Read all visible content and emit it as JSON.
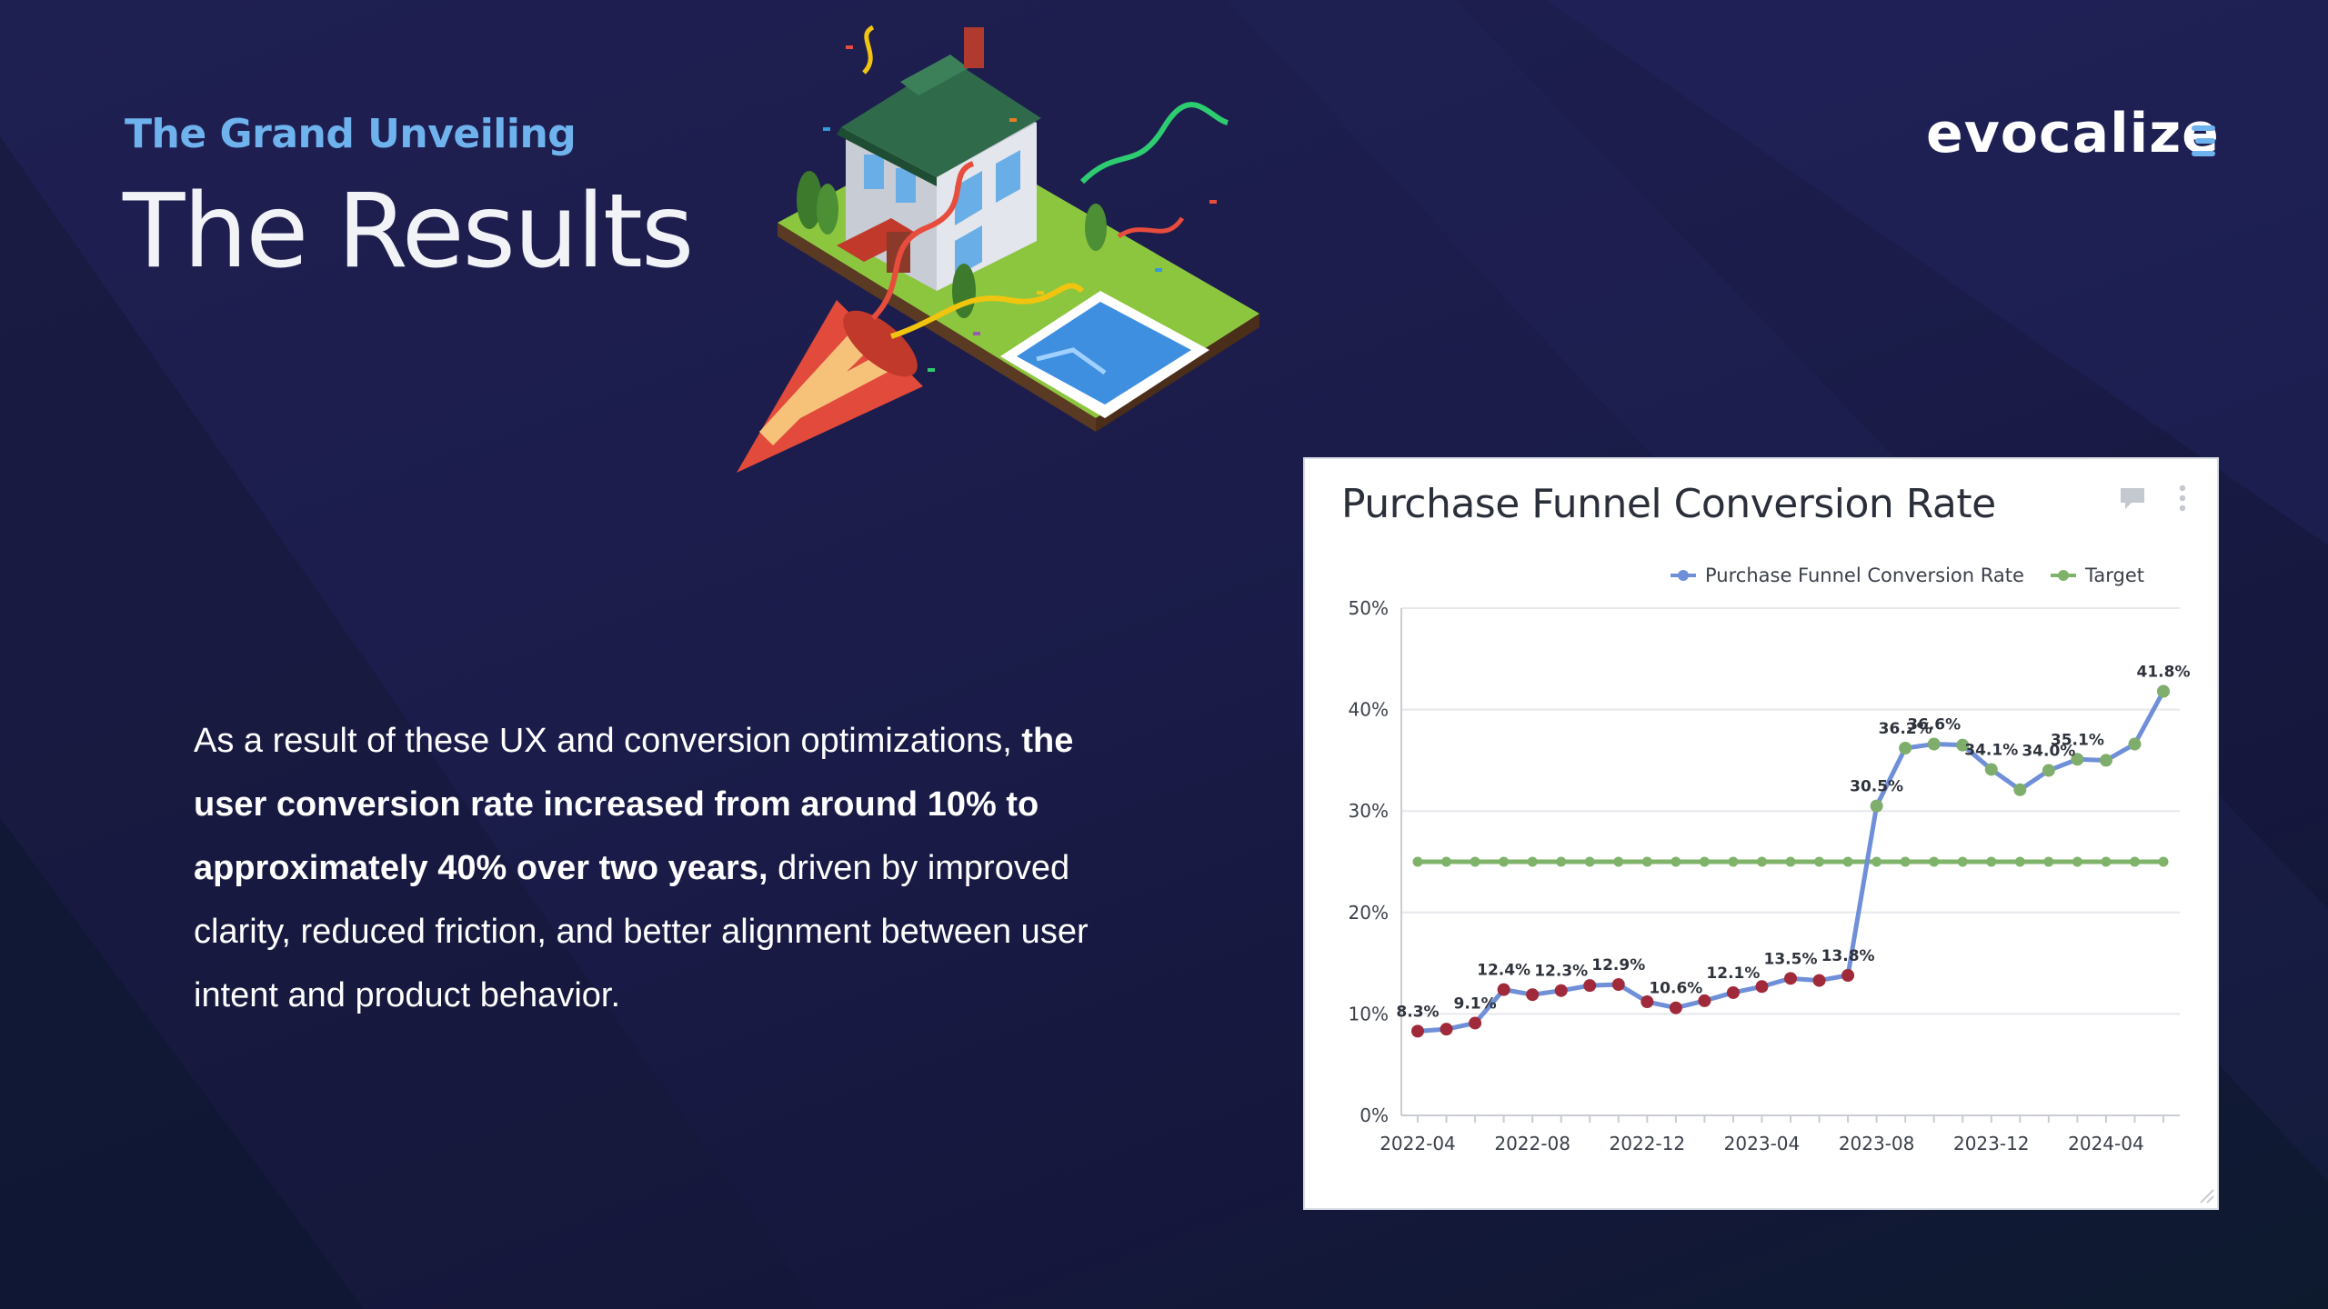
{
  "slide": {
    "eyebrow": "The Grand Unveiling",
    "title": "The Results",
    "logo": "evocalize",
    "body_intro": "As a result of these UX and conversion optimizations, ",
    "body_bold": "the user conversion rate increased from around 10% to approximately 40% over two years,",
    "body_rest": " driven by improved clarity, reduced friction, and better alignment between user intent and product behavior."
  },
  "icons": {
    "comment": "comment-icon",
    "more": "more-vertical-icon"
  },
  "colors": {
    "accent": "#6fb3ee",
    "series_line": "#6f8fd8",
    "below_target_marker": "#a02a3a",
    "above_target_marker": "#7fae6c",
    "target_line": "#7fb36a"
  },
  "chart_data": {
    "type": "line",
    "title": "Purchase Funnel Conversion Rate",
    "ylim": [
      0,
      50
    ],
    "yticks": [
      "0%",
      "10%",
      "20%",
      "30%",
      "40%",
      "50%"
    ],
    "x": [
      "2022-04",
      "2022-05",
      "2022-06",
      "2022-07",
      "2022-08",
      "2022-09",
      "2022-10",
      "2022-11",
      "2022-12",
      "2023-01",
      "2023-02",
      "2023-03",
      "2023-04",
      "2023-05",
      "2023-06",
      "2023-07",
      "2023-08",
      "2023-09",
      "2023-10",
      "2023-11",
      "2023-12",
      "2024-01",
      "2024-02",
      "2024-03",
      "2024-04",
      "2024-05",
      "2024-06"
    ],
    "xtick_labels": [
      "2022-04",
      "2022-08",
      "2022-12",
      "2023-04",
      "2023-08",
      "2023-12",
      "2024-04"
    ],
    "legend_position": "top-right",
    "grid": true,
    "series": [
      {
        "name": "Purchase Funnel Conversion Rate",
        "values": [
          8.3,
          8.5,
          9.1,
          12.4,
          11.9,
          12.3,
          12.8,
          12.9,
          11.2,
          10.6,
          11.3,
          12.1,
          12.7,
          13.5,
          13.3,
          13.8,
          30.5,
          36.2,
          36.6,
          36.5,
          34.1,
          32.1,
          34.0,
          35.1,
          35.0,
          36.6,
          41.8
        ],
        "labels": [
          "8.3%",
          "",
          "9.1%",
          "12.4%",
          "",
          "12.3%",
          "",
          "12.9%",
          "",
          "10.6%",
          "",
          "12.1%",
          "",
          "13.5%",
          "",
          "13.8%",
          "30.5%",
          "36.2%",
          "36.6%",
          "",
          "34.1%",
          "",
          "34.0%",
          "35.1%",
          "",
          "",
          "41.8%"
        ]
      },
      {
        "name": "Target",
        "values": [
          25,
          25,
          25,
          25,
          25,
          25,
          25,
          25,
          25,
          25,
          25,
          25,
          25,
          25,
          25,
          25,
          25,
          25,
          25,
          25,
          25,
          25,
          25,
          25,
          25,
          25,
          25
        ]
      }
    ]
  }
}
